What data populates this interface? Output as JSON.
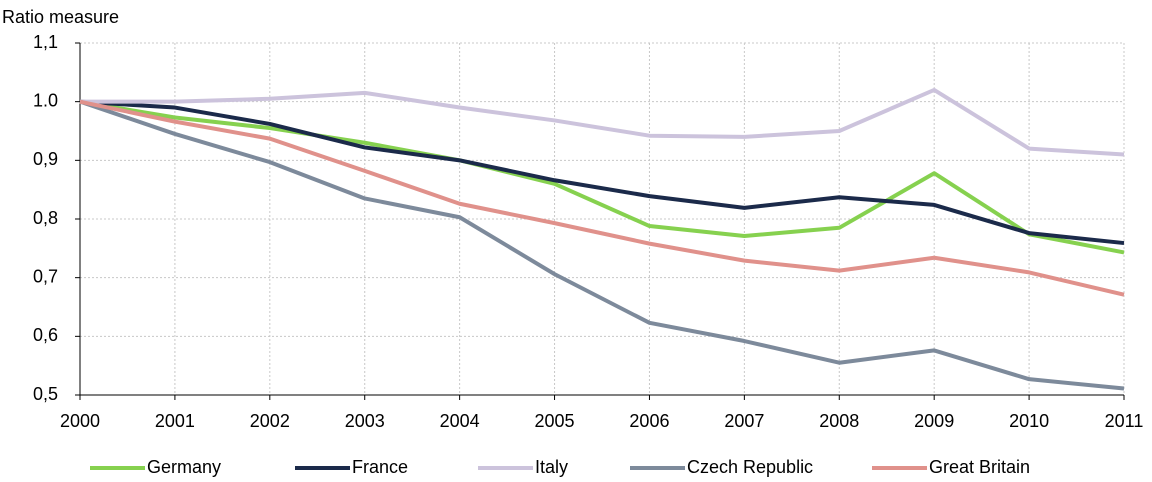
{
  "chart_data": {
    "type": "line",
    "y_label": "Ratio measure",
    "x": [
      2000,
      2001,
      2002,
      2003,
      2004,
      2005,
      2006,
      2007,
      2008,
      2009,
      2010,
      2011
    ],
    "xlim": [
      2000,
      2011
    ],
    "xticks": [
      2000,
      2001,
      2002,
      2003,
      2004,
      2005,
      2006,
      2007,
      2008,
      2009,
      2010,
      2011
    ],
    "ylim": [
      0.5,
      1.1
    ],
    "yticks": [
      {
        "value": 0.5,
        "label": "0,5"
      },
      {
        "value": 0.6,
        "label": "0,6"
      },
      {
        "value": 0.7,
        "label": "0,7"
      },
      {
        "value": 0.8,
        "label": "0,8"
      },
      {
        "value": 0.9,
        "label": "0,9"
      },
      {
        "value": 1.0,
        "label": "1.0"
      },
      {
        "value": 1.1,
        "label": "1,1"
      }
    ],
    "grid": true,
    "legend": "bottom",
    "series": [
      {
        "name": "Germany",
        "color": "#86d14f",
        "values": [
          1.0,
          0.973,
          0.955,
          0.93,
          0.9,
          0.86,
          0.788,
          0.771,
          0.785,
          0.878,
          0.774,
          0.743
        ]
      },
      {
        "name": "France",
        "color": "#1b2a4a",
        "values": [
          1.0,
          0.99,
          0.962,
          0.922,
          0.9,
          0.866,
          0.839,
          0.819,
          0.837,
          0.824,
          0.776,
          0.759
        ]
      },
      {
        "name": "Italy",
        "color": "#ccc3dc",
        "values": [
          1.0,
          1.0,
          1.005,
          1.015,
          0.99,
          0.968,
          0.942,
          0.94,
          0.95,
          1.02,
          0.92,
          0.91
        ]
      },
      {
        "name": "Czech Republic",
        "color": "#7d8a9b",
        "values": [
          1.0,
          0.945,
          0.897,
          0.835,
          0.803,
          0.706,
          0.623,
          0.592,
          0.555,
          0.576,
          0.527,
          0.511
        ]
      },
      {
        "name": "Great Britain",
        "color": "#e0918b",
        "values": [
          1.0,
          0.966,
          0.937,
          0.882,
          0.826,
          0.793,
          0.758,
          0.729,
          0.712,
          0.734,
          0.709,
          0.671
        ]
      }
    ]
  }
}
